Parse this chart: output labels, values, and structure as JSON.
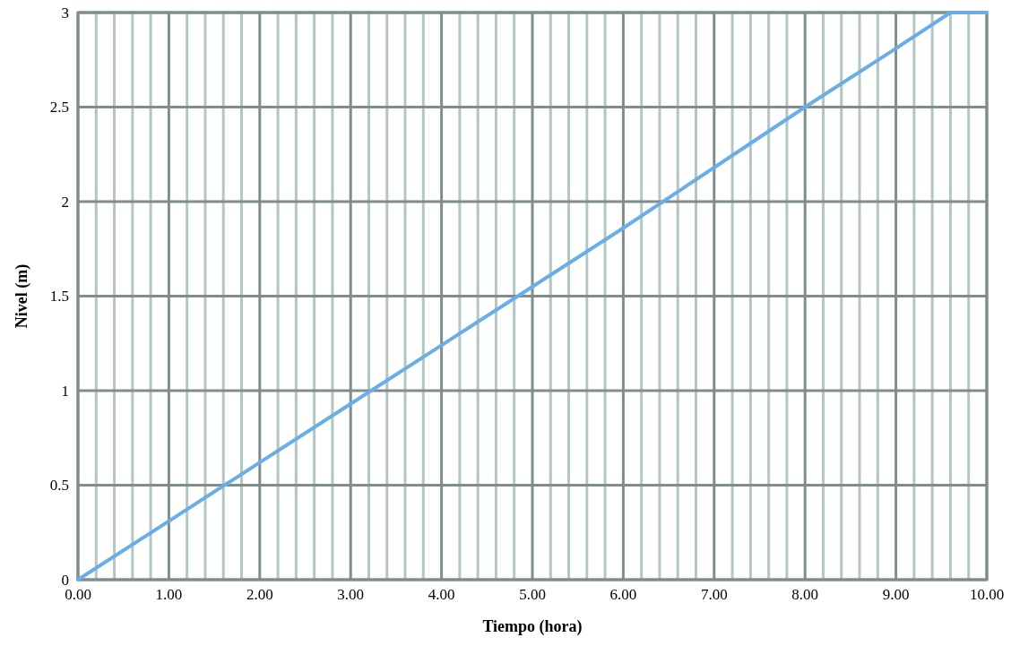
{
  "chart_data": {
    "type": "line",
    "xlabel": "Tiempo (hora)",
    "ylabel": "Nivel (m)",
    "x": [
      0,
      1,
      2,
      3,
      4,
      5,
      6,
      7,
      8,
      9,
      9.6,
      10
    ],
    "series": [
      {
        "color": "#6aaee8",
        "values": [
          0,
          0.31,
          0.62,
          0.93,
          1.24,
          1.55,
          1.86,
          2.18,
          2.5,
          2.81,
          3,
          3
        ]
      }
    ],
    "xlim": [
      0,
      10
    ],
    "xticks": [
      {
        "value": 0,
        "label": "0.00"
      },
      {
        "value": 0.2,
        "label": null
      },
      {
        "value": 0.4,
        "label": null
      },
      {
        "value": 0.6,
        "label": null
      },
      {
        "value": 0.8,
        "label": null
      },
      {
        "value": 1,
        "label": "1.00"
      },
      {
        "value": 1.2,
        "label": null
      },
      {
        "value": 1.4,
        "label": null
      },
      {
        "value": 1.6,
        "label": null
      },
      {
        "value": 1.8,
        "label": null
      },
      {
        "value": 2,
        "label": "2.00"
      },
      {
        "value": 2.2,
        "label": null
      },
      {
        "value": 2.4,
        "label": null
      },
      {
        "value": 2.6,
        "label": null
      },
      {
        "value": 2.8,
        "label": null
      },
      {
        "value": 3,
        "label": "3.00"
      },
      {
        "value": 3.2,
        "label": null
      },
      {
        "value": 3.4,
        "label": null
      },
      {
        "value": 3.6,
        "label": null
      },
      {
        "value": 3.8,
        "label": null
      },
      {
        "value": 4,
        "label": "4.00"
      },
      {
        "value": 4.2,
        "label": null
      },
      {
        "value": 4.4,
        "label": null
      },
      {
        "value": 4.6,
        "label": null
      },
      {
        "value": 4.8,
        "label": null
      },
      {
        "value": 5,
        "label": "5.00"
      },
      {
        "value": 5.2,
        "label": null
      },
      {
        "value": 5.4,
        "label": null
      },
      {
        "value": 5.6,
        "label": null
      },
      {
        "value": 5.8,
        "label": null
      },
      {
        "value": 6,
        "label": "6.00"
      },
      {
        "value": 6.2,
        "label": null
      },
      {
        "value": 6.4,
        "label": null
      },
      {
        "value": 6.6,
        "label": null
      },
      {
        "value": 6.8,
        "label": null
      },
      {
        "value": 7,
        "label": "7.00"
      },
      {
        "value": 7.2,
        "label": null
      },
      {
        "value": 7.4,
        "label": null
      },
      {
        "value": 7.6,
        "label": null
      },
      {
        "value": 7.8,
        "label": null
      },
      {
        "value": 8,
        "label": "8.00"
      },
      {
        "value": 8.2,
        "label": null
      },
      {
        "value": 8.4,
        "label": null
      },
      {
        "value": 8.6,
        "label": null
      },
      {
        "value": 8.8,
        "label": null
      },
      {
        "value": 9,
        "label": "9.00"
      },
      {
        "value": 9.2,
        "label": null
      },
      {
        "value": 9.4,
        "label": null
      },
      {
        "value": 9.6,
        "label": null
      },
      {
        "value": 9.8,
        "label": null
      },
      {
        "value": 10,
        "label": "10.00"
      }
    ],
    "ylim": [
      0,
      3
    ],
    "yticks": [
      0,
      0.5,
      1,
      1.5,
      2,
      2.5,
      3
    ],
    "grid": true,
    "marker": "none",
    "line_style": "solid"
  }
}
